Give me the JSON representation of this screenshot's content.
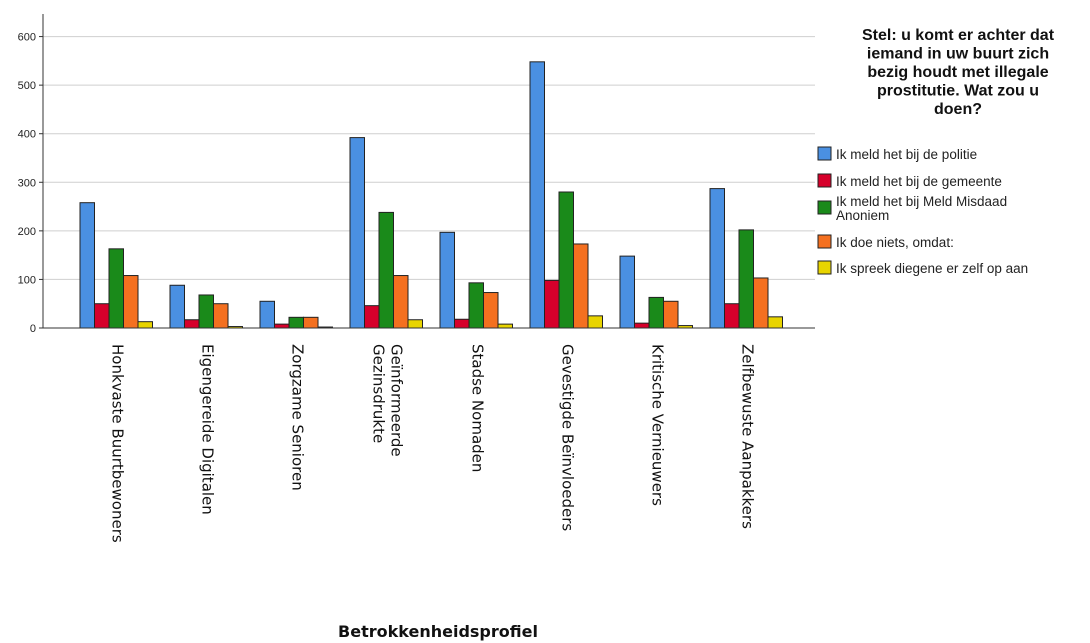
{
  "chart_data": {
    "type": "bar",
    "title": "",
    "xlabel": "Betrokkenheidsprofiel",
    "ylabel": "",
    "ylim": [
      0,
      600
    ],
    "yticks": [
      0,
      100,
      200,
      300,
      400,
      500,
      600
    ],
    "grid": true,
    "legend_position": "top-right",
    "legend_title": "Stel: u komt er achter dat iemand in uw buurt zich bezig houdt met illegale prostitutie. Wat zou u doen?",
    "categories": [
      "Honkvaste Buurtbewoners",
      "Eigengereide Digitalen",
      "Zorgzame Senioren",
      "Geïnformeerde Gezinsdrukte",
      "Stadse Nomaden",
      "Gevestigde Beïnvloeders",
      "Kritische Vernieuwers",
      "Zelfbewuste Aanpakkers"
    ],
    "series": [
      {
        "name": "Ik meld het bij de politie",
        "color": "#4a90e2",
        "values": [
          258,
          88,
          55,
          392,
          197,
          548,
          148,
          287
        ]
      },
      {
        "name": "Ik meld het bij de gemeente",
        "color": "#d6002b",
        "values": [
          50,
          17,
          8,
          46,
          18,
          98,
          10,
          50
        ]
      },
      {
        "name": "Ik meld het bij Meld Misdaad Anoniem",
        "color": "#1a8a1a",
        "values": [
          163,
          68,
          22,
          238,
          93,
          280,
          63,
          202
        ]
      },
      {
        "name": "Ik doe niets, omdat:",
        "color": "#f47020",
        "values": [
          108,
          50,
          22,
          108,
          73,
          173,
          55,
          103
        ]
      },
      {
        "name": "Ik spreek diegene er zelf op aan",
        "color": "#e8d400",
        "values": [
          13,
          3,
          2,
          17,
          8,
          25,
          5,
          23
        ]
      }
    ]
  }
}
